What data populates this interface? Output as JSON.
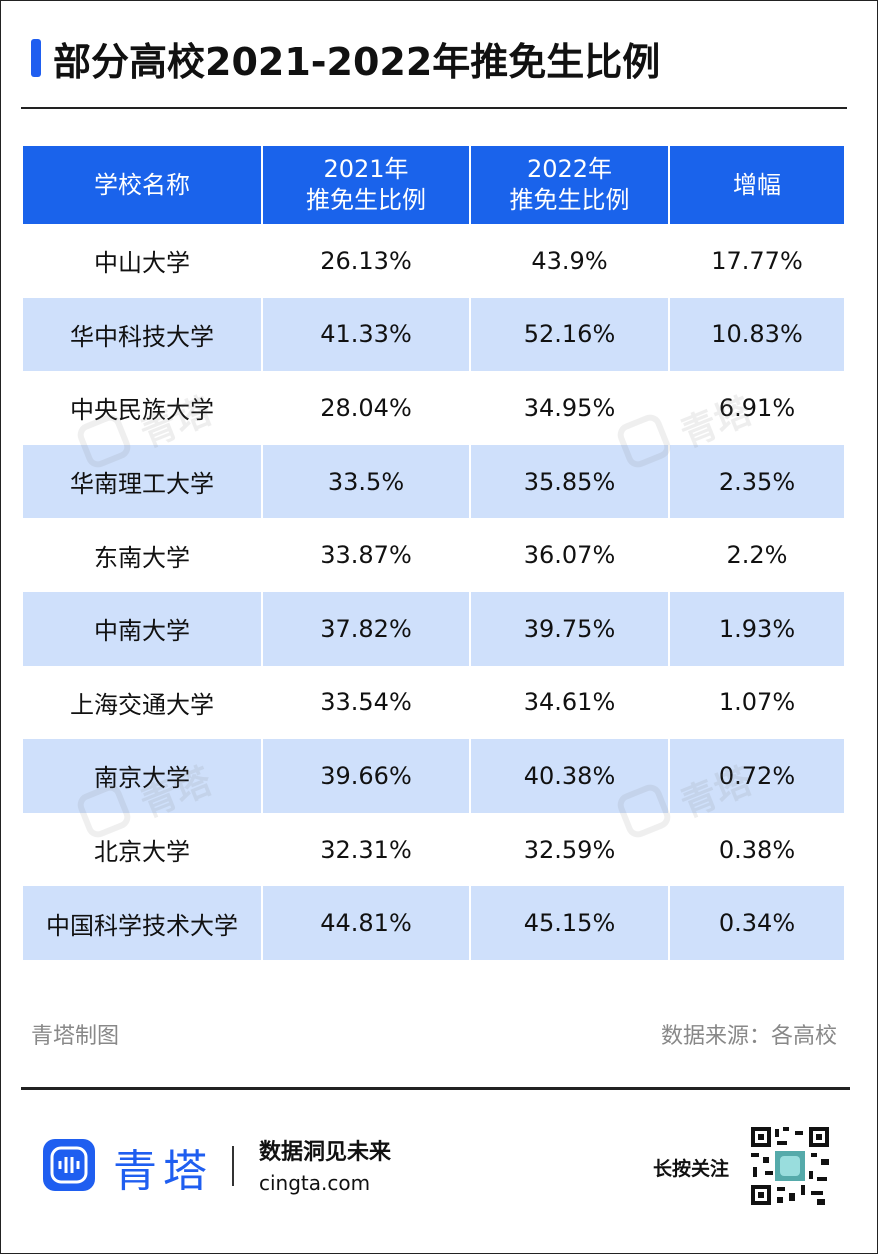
{
  "title": "部分高校2021-2022年推免生比例",
  "table": {
    "header": [
      [
        "学校名称"
      ],
      [
        "2021年",
        "推免生比例"
      ],
      [
        "2022年",
        "推免生比例"
      ],
      [
        "增幅"
      ]
    ],
    "rows": [
      [
        "中山大学",
        "26.13%",
        "43.9%",
        "17.77%"
      ],
      [
        "华中科技大学",
        "41.33%",
        "52.16%",
        "10.83%"
      ],
      [
        "中央民族大学",
        "28.04%",
        "34.95%",
        "6.91%"
      ],
      [
        "华南理工大学",
        "33.5%",
        "35.85%",
        "2.35%"
      ],
      [
        "东南大学",
        "33.87%",
        "36.07%",
        "2.2%"
      ],
      [
        "中南大学",
        "37.82%",
        "39.75%",
        "1.93%"
      ],
      [
        "上海交通大学",
        "33.54%",
        "34.61%",
        "1.07%"
      ],
      [
        "南京大学",
        "39.66%",
        "40.38%",
        "0.72%"
      ],
      [
        "北京大学",
        "32.31%",
        "32.59%",
        "0.38%"
      ],
      [
        "中国科学技术大学",
        "44.81%",
        "45.15%",
        "0.34%"
      ]
    ]
  },
  "credit": "青塔制图",
  "source": "数据来源：各高校",
  "watermark": "青塔",
  "footer": {
    "brand": "青塔",
    "slogan": "数据洞见未来",
    "url": "cingta.com",
    "follow": "长按关注"
  }
}
